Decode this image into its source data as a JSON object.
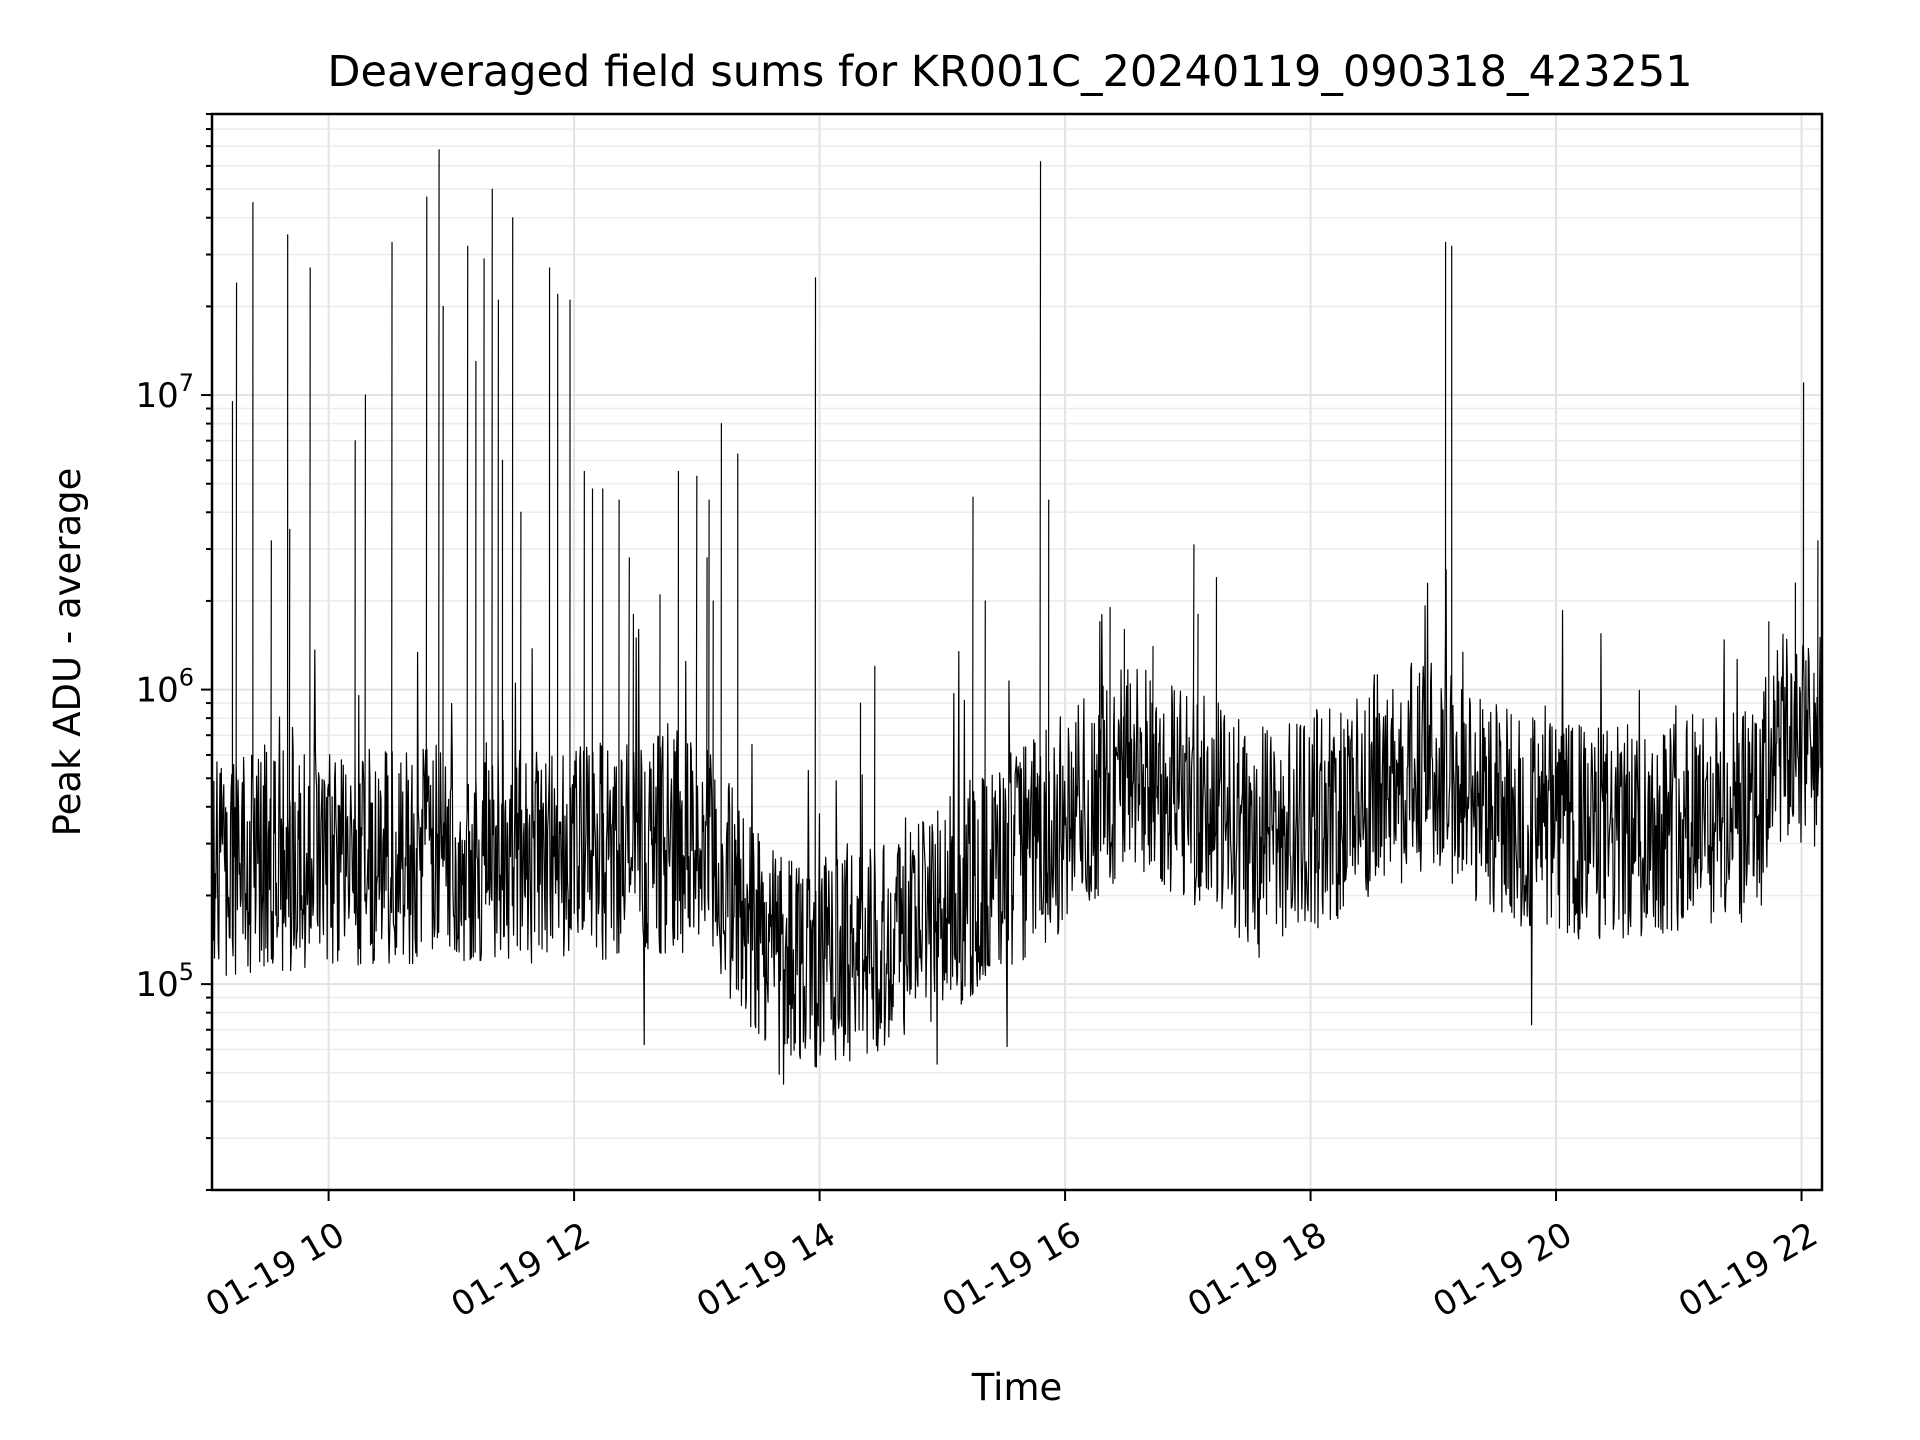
{
  "chart_data": {
    "type": "line",
    "title": "Deaveraged field sums for KR001C_20240119_090318_423251",
    "xlabel": "Time",
    "ylabel": "Peak ADU - average",
    "x_scale": "time",
    "y_scale": "log",
    "xlim": [
      "2024-01-19 09:03",
      "2024-01-19 22:10"
    ],
    "ylim": [
      20000,
      90000000
    ],
    "grid": true,
    "x_ticks": [
      {
        "value": "2024-01-19 10:00",
        "label": "01-19 10"
      },
      {
        "value": "2024-01-19 12:00",
        "label": "01-19 12"
      },
      {
        "value": "2024-01-19 14:00",
        "label": "01-19 14"
      },
      {
        "value": "2024-01-19 16:00",
        "label": "01-19 16"
      },
      {
        "value": "2024-01-19 18:00",
        "label": "01-19 18"
      },
      {
        "value": "2024-01-19 20:00",
        "label": "01-19 20"
      },
      {
        "value": "2024-01-19 22:00",
        "label": "01-19 22"
      }
    ],
    "y_ticks": [
      {
        "value": 100000,
        "base": "10",
        "exp": "5"
      },
      {
        "value": 1000000,
        "base": "10",
        "exp": "6"
      },
      {
        "value": 10000000,
        "base": "10",
        "exp": "7"
      }
    ],
    "series": [
      {
        "color": "#000000",
        "baseline": {
          "x": [
            "2024-01-19 09:03",
            "2024-01-19 10:00",
            "2024-01-19 11:00",
            "2024-01-19 12:00",
            "2024-01-19 12:40",
            "2024-01-19 13:00",
            "2024-01-19 13:30",
            "2024-01-19 14:00",
            "2024-01-19 14:30",
            "2024-01-19 15:00",
            "2024-01-19 15:30",
            "2024-01-19 16:00",
            "2024-01-19 16:30",
            "2024-01-19 17:00",
            "2024-01-19 17:30",
            "2024-01-19 18:00",
            "2024-01-19 18:30",
            "2024-01-19 19:00",
            "2024-01-19 19:30",
            "2024-01-19 20:00",
            "2024-01-19 20:30",
            "2024-01-19 21:00",
            "2024-01-19 21:40",
            "2024-01-19 21:45",
            "2024-01-19 22:10"
          ],
          "y": [
            250000,
            270000,
            280000,
            280000,
            300000,
            300000,
            150000,
            120000,
            140000,
            180000,
            250000,
            350000,
            550000,
            450000,
            320000,
            350000,
            480000,
            550000,
            400000,
            330000,
            320000,
            360000,
            360000,
            650000,
            650000
          ]
        },
        "spikes": {
          "x": [
            "2024-01-19 09:13",
            "2024-01-19 09:15",
            "2024-01-19 09:23",
            "2024-01-19 09:32",
            "2024-01-19 09:40",
            "2024-01-19 09:41",
            "2024-01-19 09:51",
            "2024-01-19 10:13",
            "2024-01-19 10:18",
            "2024-01-19 10:31",
            "2024-01-19 10:48",
            "2024-01-19 10:54",
            "2024-01-19 10:56",
            "2024-01-19 11:08",
            "2024-01-19 11:12",
            "2024-01-19 11:16",
            "2024-01-19 11:20",
            "2024-01-19 11:23",
            "2024-01-19 11:25",
            "2024-01-19 11:30",
            "2024-01-19 11:34",
            "2024-01-19 11:48",
            "2024-01-19 11:52",
            "2024-01-19 11:58",
            "2024-01-19 12:05",
            "2024-01-19 12:09",
            "2024-01-19 12:14",
            "2024-01-19 12:22",
            "2024-01-19 12:27",
            "2024-01-19 12:29",
            "2024-01-19 12:42",
            "2024-01-19 12:51",
            "2024-01-19 13:00",
            "2024-01-19 13:05",
            "2024-01-19 13:06",
            "2024-01-19 13:08",
            "2024-01-19 13:12",
            "2024-01-19 13:20",
            "2024-01-19 13:58",
            "2024-01-19 14:20",
            "2024-01-19 14:27",
            "2024-01-19 15:15",
            "2024-01-19 15:21",
            "2024-01-19 15:48",
            "2024-01-19 15:52",
            "2024-01-19 16:17",
            "2024-01-19 16:22",
            "2024-01-19 16:29",
            "2024-01-19 16:43",
            "2024-01-19 17:03",
            "2024-01-19 17:05",
            "2024-01-19 17:14",
            "2024-01-19 19:06",
            "2024-01-19 19:09",
            "2024-01-19 21:44",
            "2024-01-19 21:57",
            "2024-01-19 22:01",
            "2024-01-19 22:08"
          ],
          "y": [
            9500000,
            24000000,
            45000000,
            3200000,
            35000000,
            3500000,
            27000000,
            7000000,
            10000000,
            33000000,
            47000000,
            68000000,
            20000000,
            32000000,
            13000000,
            29000000,
            50000000,
            21000000,
            6000000,
            40000000,
            4000000,
            27000000,
            22000000,
            21000000,
            5500000,
            4800000,
            4800000,
            4400000,
            2800000,
            1800000,
            2100000,
            5500000,
            5300000,
            2800000,
            4400000,
            2000000,
            8000000,
            6300000,
            25000000,
            900000,
            1200000,
            4500000,
            2000000,
            62000000,
            4400000,
            1700000,
            1900000,
            1600000,
            1400000,
            3100000,
            1800000,
            2400000,
            33000000,
            32000000,
            1700000,
            2300000,
            11000000,
            3200000
          ]
        }
      }
    ]
  }
}
